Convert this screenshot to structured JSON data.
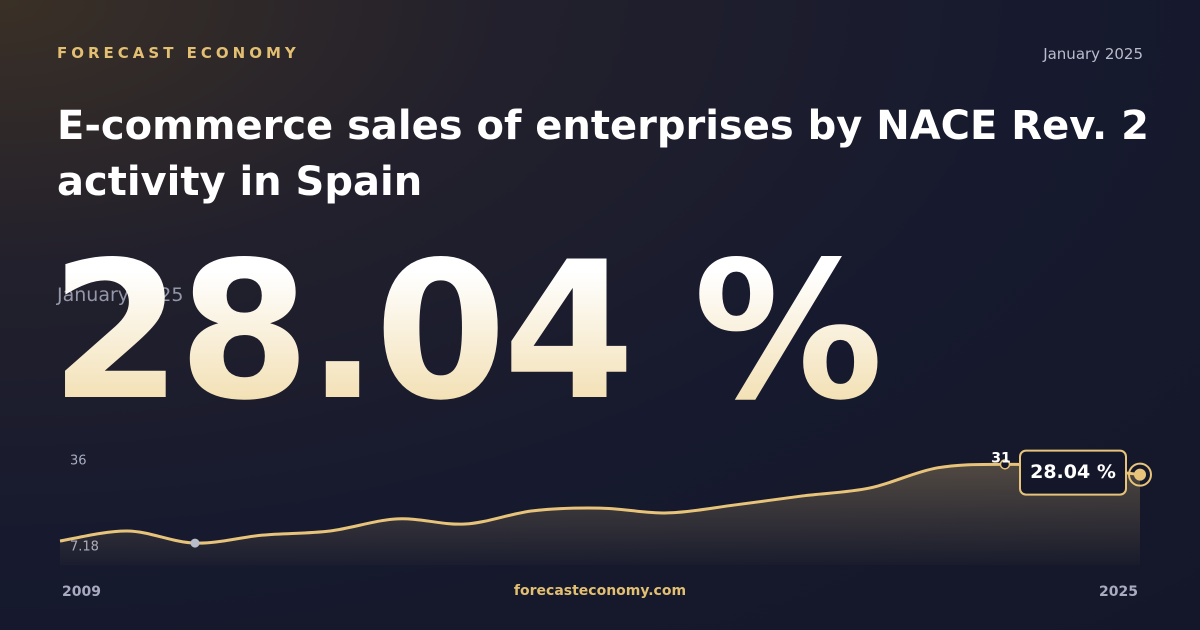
{
  "brand": "FORECAST ECONOMY",
  "date": "January 2025",
  "headline": "28.04 %",
  "footer": "forecasteconomy.com",
  "chart_data": {
    "type": "line",
    "title": "E-commerce sales of enterprises by NACE Rev. 2 activity in Spain",
    "x": [
      2009,
      2010,
      2011,
      2012,
      2013,
      2014,
      2015,
      2016,
      2017,
      2018,
      2019,
      2020,
      2021,
      2022,
      2023,
      2024,
      2025
    ],
    "values": [
      8.9,
      11.8,
      8.3,
      10.6,
      11.8,
      15.3,
      13.8,
      17.6,
      18.4,
      17.0,
      19.3,
      21.9,
      24.2,
      30.0,
      31,
      30.2,
      28.04
    ],
    "value_labels": [
      null,
      null,
      null,
      null,
      null,
      null,
      null,
      null,
      null,
      null,
      null,
      null,
      null,
      null,
      "31",
      null,
      "28.04 %"
    ],
    "color": "#e8c47a",
    "xlim": [
      2009,
      2025
    ],
    "xticks": [
      2009,
      2025
    ],
    "ylim": [
      7.18,
      36
    ],
    "yticks": [
      36,
      7.18
    ]
  }
}
